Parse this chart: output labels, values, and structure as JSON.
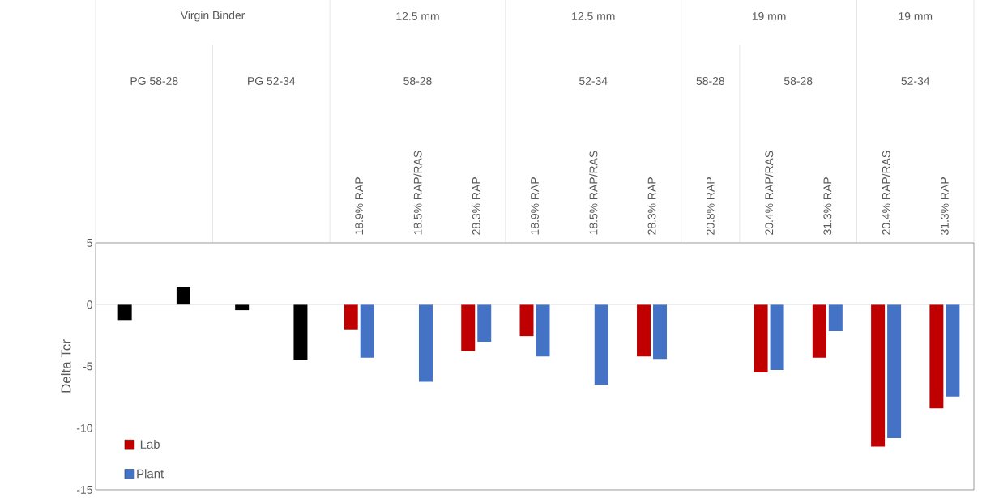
{
  "chart_data": {
    "type": "bar",
    "ylabel": "Delta Tcr",
    "categories": [
      null,
      null,
      null,
      null,
      "18.9% RAP",
      "18.5% RAP/RAS",
      "28.3% RAP",
      "18.9% RAP",
      "18.5% RAP/RAS",
      "28.3% RAP",
      "20.8% RAP",
      "20.4% RAP/RAS",
      "31.3% RAP",
      "20.4% RAP/RAS",
      "31.3% RAP"
    ],
    "series": [
      {
        "color": "#000000",
        "values": [
          -1.25,
          1.45,
          -0.45,
          -4.45,
          null,
          null,
          null,
          null,
          null,
          null,
          null,
          null,
          null,
          null,
          null
        ]
      },
      {
        "name": "Lab",
        "color": "#c00000",
        "values": [
          null,
          null,
          null,
          null,
          -2.0,
          null,
          -3.75,
          -2.55,
          null,
          -4.2,
          null,
          -5.5,
          -4.3,
          -11.5,
          -8.4
        ]
      },
      {
        "name": "Plant",
        "color": "#4472c4",
        "values": [
          null,
          null,
          null,
          null,
          -4.3,
          -6.25,
          -3.0,
          -4.2,
          -6.5,
          -4.4,
          null,
          -5.3,
          -2.15,
          -10.8,
          -7.45
        ]
      }
    ],
    "ylim": [
      -15,
      5
    ],
    "yticks": [
      -15,
      -10,
      -5,
      0,
      5
    ],
    "legend": "bottom left",
    "annotations": [
      "Virgin Binder",
      "12.5 mm",
      "12.5 mm",
      "19 mm",
      "19 mm",
      "PG 58-28",
      "PG 52-34",
      "58-28",
      "52-34",
      "58-28",
      "58-28",
      "52-34"
    ]
  }
}
